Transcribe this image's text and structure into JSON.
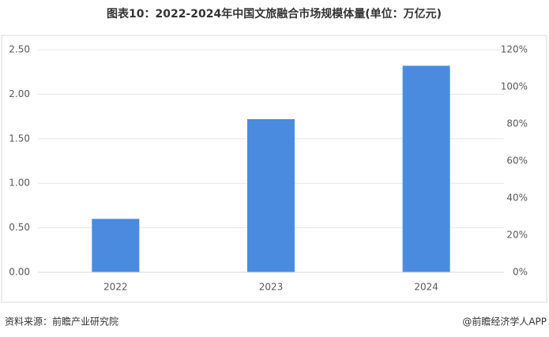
{
  "chart_data": {
    "type": "bar",
    "title": "图表10：2022-2024年中国文旅融合市场规模体量(单位：万亿元)",
    "categories": [
      "2022",
      "2023",
      "2024"
    ],
    "values": [
      0.6,
      1.72,
      2.32
    ],
    "color": "#4a8be0",
    "ylim": [
      0,
      2.5
    ],
    "yticks": [
      {
        "value": 0,
        "label": "0.00"
      },
      {
        "value": 0.5,
        "label": "0.50"
      },
      {
        "value": 1,
        "label": "1.00"
      },
      {
        "value": 1.5,
        "label": "1.50"
      },
      {
        "value": 2,
        "label": "2.00"
      },
      {
        "value": 2.5,
        "label": "2.50"
      }
    ],
    "y2lim": [
      0,
      120
    ],
    "y2ticks": [
      {
        "value": 0,
        "label": "0%"
      },
      {
        "value": 20,
        "label": "20%"
      },
      {
        "value": 40,
        "label": "40%"
      },
      {
        "value": 60,
        "label": "60%"
      },
      {
        "value": 80,
        "label": "80%"
      },
      {
        "value": 100,
        "label": "100%"
      },
      {
        "value": 120,
        "label": "120%"
      }
    ],
    "grid": true,
    "source": "资料来源：前瞻产业研究院",
    "credit": "@前瞻经济学人APP"
  }
}
